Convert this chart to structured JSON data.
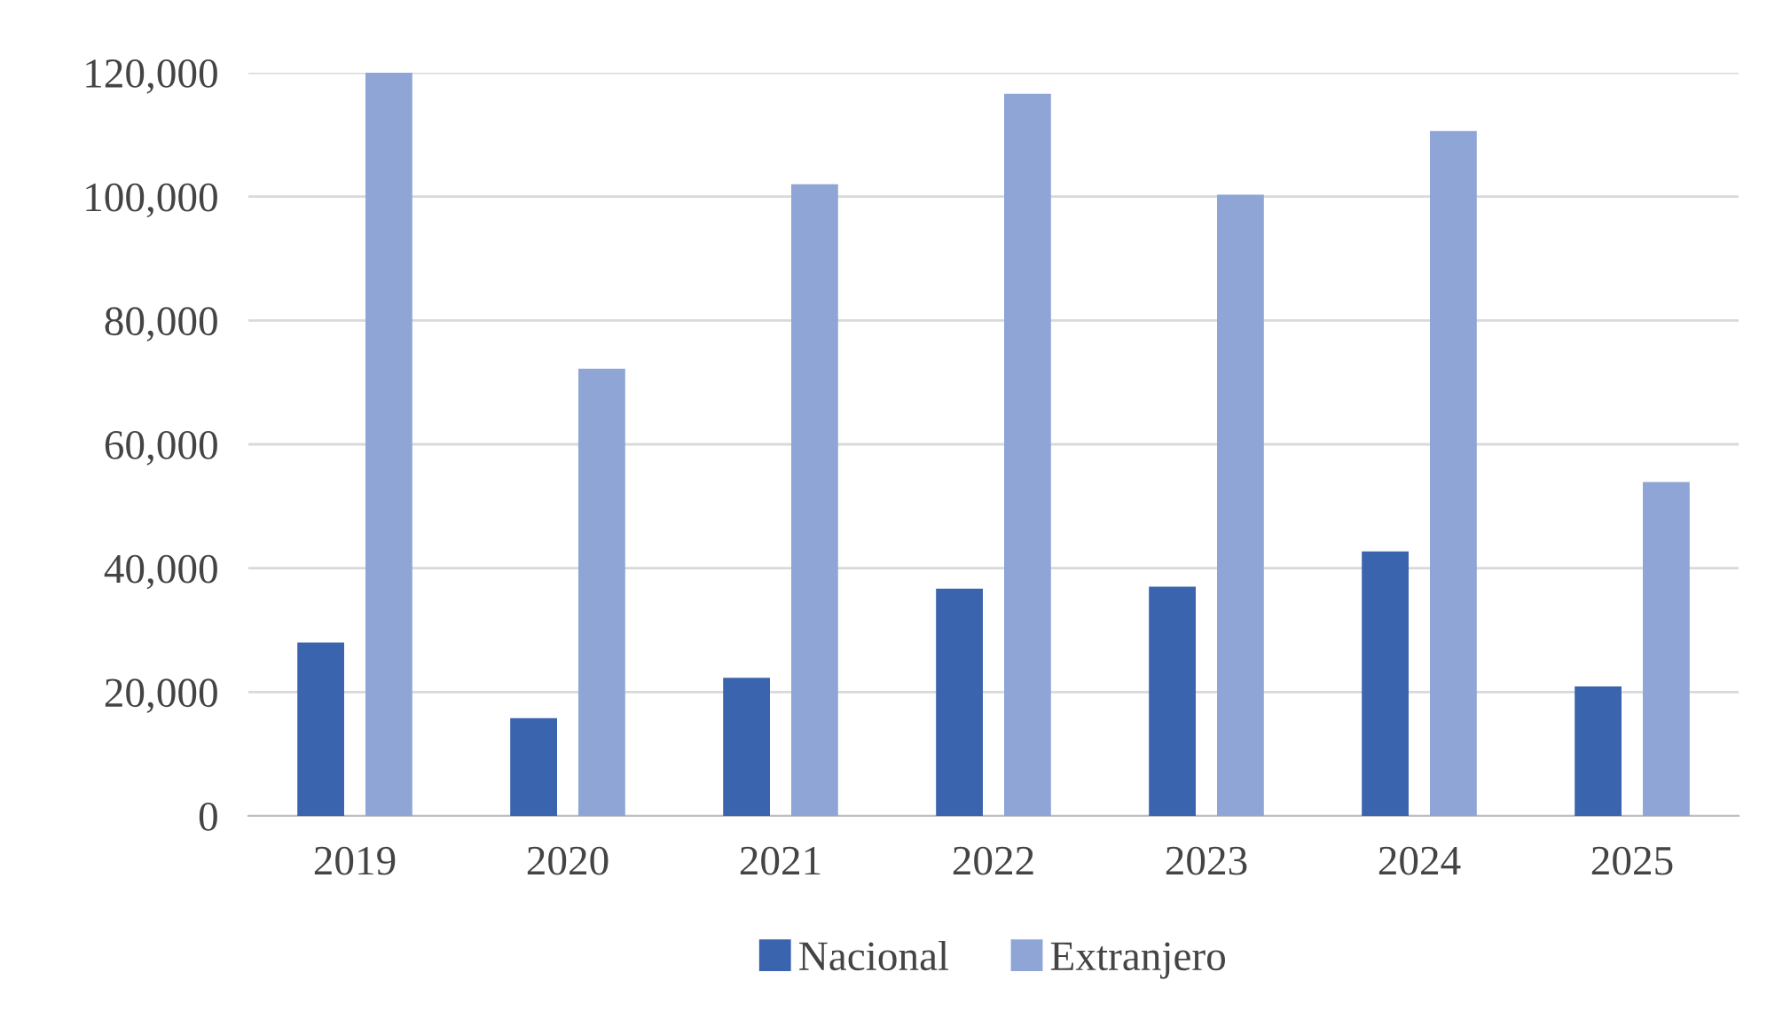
{
  "chart_data": {
    "type": "bar",
    "categories": [
      "2019",
      "2020",
      "2021",
      "2022",
      "2023",
      "2024",
      "2025"
    ],
    "series": [
      {
        "name": "Nacional",
        "color": "#3a64ad",
        "values": [
          28000,
          15800,
          22300,
          36700,
          37000,
          42700,
          20900
        ]
      },
      {
        "name": "Extranjero",
        "color": "#8fa5d6",
        "values": [
          120000,
          72200,
          102000,
          116600,
          100300,
          110600,
          53900
        ]
      }
    ],
    "ylim": [
      0,
      120000
    ],
    "yticks": [
      {
        "value": 0,
        "label": "0"
      },
      {
        "value": 20000,
        "label": "20,000"
      },
      {
        "value": 40000,
        "label": "40,000"
      },
      {
        "value": 60000,
        "label": "60,000"
      },
      {
        "value": 80000,
        "label": "80,000"
      },
      {
        "value": 100000,
        "label": "100,000"
      },
      {
        "value": 120000,
        "label": "120,000"
      }
    ],
    "grid": "y",
    "legend": "bottom"
  }
}
